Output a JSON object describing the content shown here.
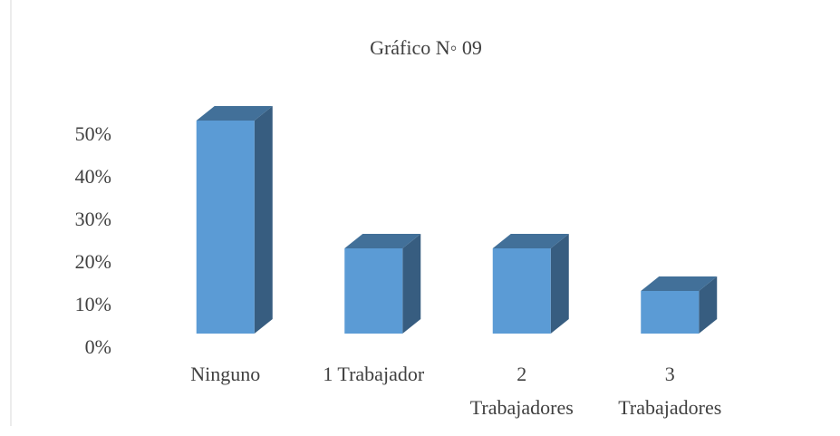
{
  "chart_data": {
    "type": "bar3d",
    "title": "Gráfico N◦ 09",
    "categories": [
      "Ninguno",
      "1 Trabajador",
      "2 Trabajadores",
      "3 Trabajadores"
    ],
    "values": [
      50,
      20,
      20,
      10
    ],
    "color": "#5b9bd5",
    "ylim": [
      0,
      50
    ],
    "yticks": [
      {
        "value": 0,
        "label": "0%"
      },
      {
        "value": 10,
        "label": "10%"
      },
      {
        "value": 20,
        "label": "20%"
      },
      {
        "value": 30,
        "label": "30%"
      },
      {
        "value": 40,
        "label": "40%"
      },
      {
        "value": 50,
        "label": "50%"
      }
    ]
  }
}
